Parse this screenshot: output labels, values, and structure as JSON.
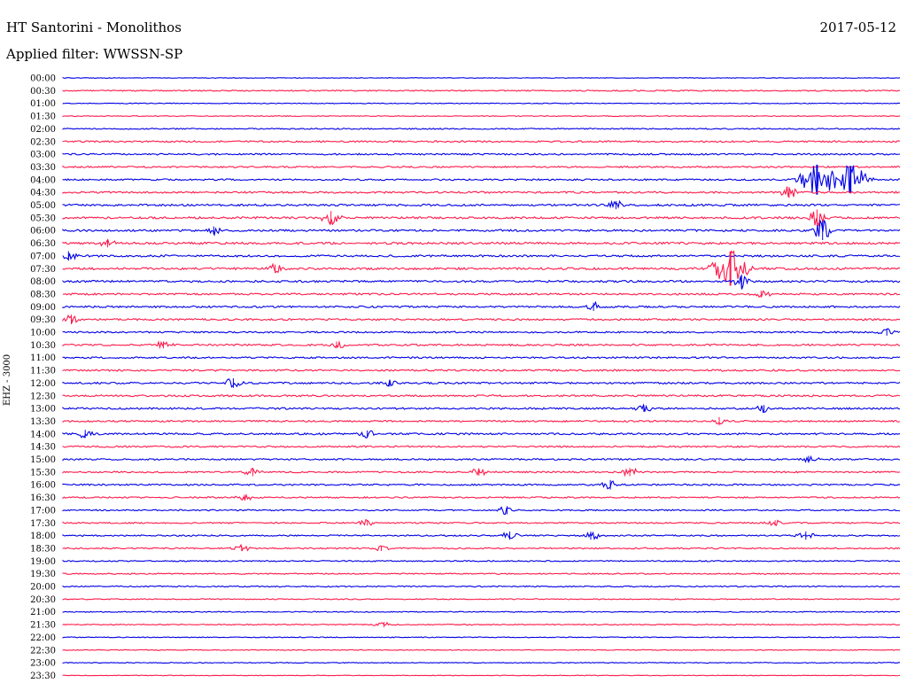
{
  "header": {
    "station": "HT Santorini - Monolithos",
    "date": "2017-05-12",
    "filter": "Applied filter: WWSSN-SP",
    "channel": "EHZ - 3000"
  },
  "colors": {
    "even_line": "#0000e6",
    "odd_line": "#ff1a4b"
  },
  "chart_data": {
    "type": "line",
    "title": "HT Santorini - Monolithos",
    "ylabel": "EHZ - 3000",
    "x_span_minutes": 30,
    "rows": [
      "00:00",
      "00:30",
      "01:00",
      "01:30",
      "02:00",
      "02:30",
      "03:00",
      "03:30",
      "04:00",
      "04:30",
      "05:00",
      "05:30",
      "06:00",
      "06:30",
      "07:00",
      "07:30",
      "08:00",
      "08:30",
      "09:00",
      "09:30",
      "10:00",
      "10:30",
      "11:00",
      "11:30",
      "12:00",
      "12:30",
      "13:00",
      "13:30",
      "14:00",
      "14:30",
      "15:00",
      "15:30",
      "16:00",
      "16:30",
      "17:00",
      "17:30",
      "18:00",
      "18:30",
      "19:00",
      "19:30",
      "20:00",
      "20:30",
      "21:00",
      "21:30",
      "22:00",
      "22:30",
      "23:00",
      "23:30"
    ],
    "noise_level": [
      0.3,
      0.6,
      0.4,
      0.4,
      0.6,
      0.8,
      0.8,
      0.8,
      0.8,
      0.9,
      1.0,
      1.0,
      1.0,
      1.1,
      1.0,
      1.1,
      1.0,
      0.9,
      0.9,
      0.9,
      0.8,
      0.9,
      0.8,
      0.9,
      0.9,
      0.9,
      0.9,
      0.8,
      0.9,
      0.8,
      0.8,
      0.8,
      0.8,
      0.7,
      0.7,
      0.7,
      0.7,
      0.7,
      0.6,
      0.6,
      0.6,
      0.5,
      0.5,
      0.5,
      0.4,
      0.4,
      0.4,
      0.3
    ],
    "events": [
      {
        "row": "04:00",
        "minute": 27.0,
        "amplitude": 2.2
      },
      {
        "row": "04:00",
        "minute": 28.2,
        "amplitude": 2.0
      },
      {
        "row": "04:30",
        "minute": 26.0,
        "amplitude": 0.8
      },
      {
        "row": "05:00",
        "minute": 19.8,
        "amplitude": 0.6
      },
      {
        "row": "05:30",
        "minute": 27.0,
        "amplitude": 1.2
      },
      {
        "row": "05:30",
        "minute": 9.6,
        "amplitude": 1.0
      },
      {
        "row": "06:00",
        "minute": 5.4,
        "amplitude": 0.6
      },
      {
        "row": "06:00",
        "minute": 27.2,
        "amplitude": 1.4
      },
      {
        "row": "06:30",
        "minute": 1.6,
        "amplitude": 0.6
      },
      {
        "row": "07:00",
        "minute": 0.2,
        "amplitude": 0.7
      },
      {
        "row": "07:30",
        "minute": 23.9,
        "amplitude": 2.5
      },
      {
        "row": "07:30",
        "minute": 7.6,
        "amplitude": 0.6
      },
      {
        "row": "08:00",
        "minute": 24.3,
        "amplitude": 1.0
      },
      {
        "row": "08:30",
        "minute": 25.0,
        "amplitude": 0.5
      },
      {
        "row": "09:00",
        "minute": 19.0,
        "amplitude": 0.6
      },
      {
        "row": "09:30",
        "minute": 0.3,
        "amplitude": 0.7
      },
      {
        "row": "10:00",
        "minute": 29.5,
        "amplitude": 0.5
      },
      {
        "row": "10:30",
        "minute": 3.6,
        "amplitude": 0.5
      },
      {
        "row": "10:30",
        "minute": 9.8,
        "amplitude": 0.5
      },
      {
        "row": "12:00",
        "minute": 6.1,
        "amplitude": 0.7
      },
      {
        "row": "12:00",
        "minute": 11.7,
        "amplitude": 0.5
      },
      {
        "row": "13:00",
        "minute": 20.8,
        "amplitude": 0.5
      },
      {
        "row": "13:00",
        "minute": 25.1,
        "amplitude": 0.5
      },
      {
        "row": "13:30",
        "minute": 23.5,
        "amplitude": 0.6
      },
      {
        "row": "14:00",
        "minute": 0.8,
        "amplitude": 0.6
      },
      {
        "row": "14:00",
        "minute": 10.9,
        "amplitude": 0.5
      },
      {
        "row": "15:00",
        "minute": 26.7,
        "amplitude": 0.5
      },
      {
        "row": "15:30",
        "minute": 6.8,
        "amplitude": 0.6
      },
      {
        "row": "15:30",
        "minute": 14.9,
        "amplitude": 0.5
      },
      {
        "row": "15:30",
        "minute": 20.3,
        "amplitude": 0.6
      },
      {
        "row": "16:00",
        "minute": 19.6,
        "amplitude": 0.7
      },
      {
        "row": "16:30",
        "minute": 6.5,
        "amplitude": 0.4
      },
      {
        "row": "17:00",
        "minute": 15.9,
        "amplitude": 0.6
      },
      {
        "row": "17:30",
        "minute": 10.9,
        "amplitude": 0.4
      },
      {
        "row": "17:30",
        "minute": 25.5,
        "amplitude": 0.4
      },
      {
        "row": "18:00",
        "minute": 16.0,
        "amplitude": 0.6
      },
      {
        "row": "18:00",
        "minute": 18.9,
        "amplitude": 0.6
      },
      {
        "row": "18:00",
        "minute": 26.6,
        "amplitude": 0.6
      },
      {
        "row": "18:30",
        "minute": 6.4,
        "amplitude": 0.4
      },
      {
        "row": "18:30",
        "minute": 11.4,
        "amplitude": 0.4
      },
      {
        "row": "21:30",
        "minute": 11.5,
        "amplitude": 0.4
      }
    ]
  }
}
